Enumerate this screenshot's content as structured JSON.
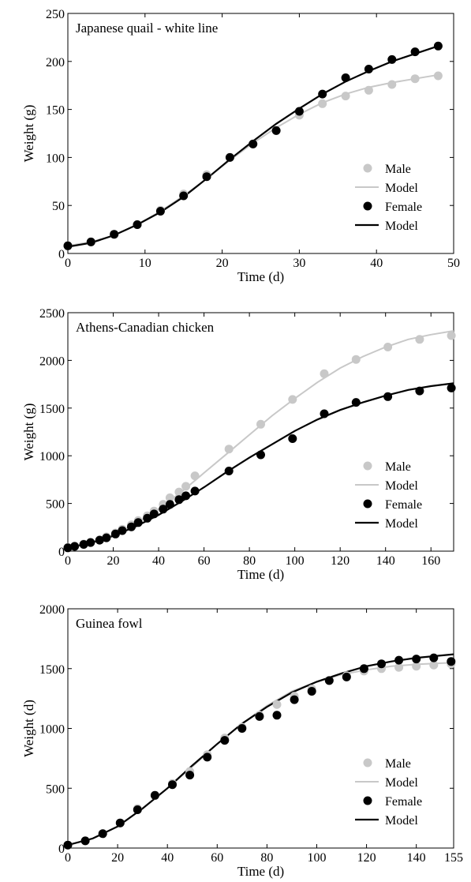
{
  "colors": {
    "male": "#c8c8c8",
    "female": "#000000",
    "model_male": "#c8c8c8",
    "model_female": "#000000"
  },
  "chart_data": [
    {
      "type": "line",
      "title": "Japanese quail - white line",
      "xlabel": "Time (d)",
      "ylabel": "Weight (g)",
      "xlim": [
        0,
        50
      ],
      "ylim": [
        0,
        250
      ],
      "xticks": [
        0,
        10,
        20,
        30,
        40,
        50
      ],
      "yticks": [
        0,
        50,
        100,
        150,
        200,
        250
      ],
      "legend": {
        "placement": "bottom-right",
        "labels": [
          "Male",
          "Model",
          "Female",
          "Model"
        ]
      },
      "series": [
        {
          "name": "Male",
          "kind": "points",
          "x": [
            0,
            3,
            6,
            9,
            12,
            15,
            18,
            21,
            24,
            27,
            30,
            33,
            36,
            39,
            42,
            45,
            48
          ],
          "y": [
            8,
            12,
            20,
            30,
            45,
            62,
            82,
            100,
            114,
            128,
            144,
            156,
            164,
            170,
            176,
            182,
            185
          ]
        },
        {
          "name": "Model",
          "kind": "line",
          "x": [
            0,
            3,
            6,
            9,
            12,
            15,
            18,
            21,
            24,
            27,
            30,
            33,
            36,
            39,
            42,
            45,
            48
          ],
          "y": [
            8,
            12,
            19,
            30,
            44,
            60,
            78,
            97,
            115,
            131,
            145,
            157,
            166,
            173,
            178,
            182,
            186
          ]
        },
        {
          "name": "Female",
          "kind": "points",
          "x": [
            0,
            3,
            6,
            9,
            12,
            15,
            18,
            21,
            24,
            27,
            30,
            33,
            36,
            39,
            42,
            45,
            48
          ],
          "y": [
            8,
            12,
            20,
            30,
            44,
            60,
            80,
            100,
            114,
            128,
            148,
            166,
            183,
            192,
            202,
            210,
            216
          ]
        },
        {
          "name": "Model",
          "kind": "line",
          "x": [
            0,
            3,
            6,
            9,
            12,
            15,
            18,
            21,
            24,
            27,
            30,
            33,
            36,
            39,
            42,
            45,
            48
          ],
          "y": [
            7,
            11,
            19,
            30,
            43,
            59,
            78,
            98,
            117,
            135,
            151,
            166,
            179,
            190,
            200,
            208,
            216
          ]
        }
      ]
    },
    {
      "type": "line",
      "title": "Athens-Canadian chicken",
      "xlabel": "Time (d)",
      "ylabel": "Weight (g)",
      "xlim": [
        0,
        170
      ],
      "ylim": [
        0,
        2500
      ],
      "xticks": [
        0,
        20,
        40,
        60,
        80,
        100,
        120,
        140,
        160
      ],
      "yticks": [
        0,
        500,
        1000,
        1500,
        2000,
        2500
      ],
      "legend": {
        "placement": "bottom-right",
        "labels": [
          "Male",
          "Model",
          "Female",
          "Model"
        ]
      },
      "series": [
        {
          "name": "Male",
          "kind": "points",
          "x": [
            0,
            3,
            7,
            10,
            14,
            17,
            21,
            24,
            28,
            31,
            35,
            38,
            42,
            45,
            49,
            52,
            56,
            71,
            85,
            99,
            113,
            127,
            141,
            155,
            169
          ],
          "y": [
            40,
            55,
            75,
            95,
            120,
            150,
            190,
            230,
            275,
            320,
            370,
            420,
            490,
            560,
            620,
            680,
            790,
            1070,
            1330,
            1590,
            1860,
            2010,
            2140,
            2220,
            2260
          ]
        },
        {
          "name": "Model",
          "kind": "line",
          "x": [
            0,
            10,
            20,
            30,
            40,
            50,
            60,
            70,
            80,
            90,
            100,
            110,
            120,
            130,
            140,
            150,
            160,
            170
          ],
          "y": [
            40,
            90,
            170,
            290,
            440,
            620,
            820,
            1020,
            1220,
            1420,
            1600,
            1770,
            1920,
            2040,
            2140,
            2220,
            2270,
            2310
          ]
        },
        {
          "name": "Female",
          "kind": "points",
          "x": [
            0,
            3,
            7,
            10,
            14,
            17,
            21,
            24,
            28,
            31,
            35,
            38,
            42,
            45,
            49,
            52,
            56,
            71,
            85,
            99,
            113,
            127,
            141,
            155,
            169
          ],
          "y": [
            35,
            50,
            70,
            90,
            115,
            140,
            180,
            215,
            255,
            300,
            345,
            390,
            440,
            490,
            540,
            580,
            630,
            840,
            1010,
            1180,
            1440,
            1560,
            1620,
            1680,
            1710
          ]
        },
        {
          "name": "Model",
          "kind": "line",
          "x": [
            0,
            10,
            20,
            30,
            40,
            50,
            60,
            70,
            80,
            90,
            100,
            110,
            120,
            130,
            140,
            150,
            160,
            170
          ],
          "y": [
            35,
            85,
            160,
            260,
            380,
            520,
            670,
            830,
            980,
            1120,
            1260,
            1380,
            1480,
            1560,
            1630,
            1690,
            1730,
            1760
          ]
        }
      ]
    },
    {
      "type": "line",
      "title": "Guinea fowl",
      "xlabel": "Time (d)",
      "ylabel": "Weight (d)",
      "xlim": [
        0,
        155
      ],
      "ylim": [
        0,
        2000
      ],
      "xticks": [
        0,
        20,
        40,
        60,
        80,
        100,
        120,
        140,
        155
      ],
      "yticks": [
        0,
        500,
        1000,
        1500,
        2000
      ],
      "legend": {
        "placement": "bottom-right",
        "labels": [
          "Male",
          "Model",
          "Female",
          "Model"
        ]
      },
      "series": [
        {
          "name": "Male",
          "kind": "points",
          "x": [
            0,
            7,
            14,
            21,
            28,
            35,
            42,
            49,
            56,
            63,
            70,
            77,
            84,
            91,
            98,
            105,
            112,
            119,
            126,
            133,
            140,
            147,
            154
          ],
          "y": [
            25,
            60,
            120,
            210,
            330,
            440,
            540,
            640,
            780,
            920,
            1010,
            1110,
            1200,
            1270,
            1330,
            1400,
            1440,
            1480,
            1500,
            1510,
            1520,
            1530,
            1540
          ]
        },
        {
          "name": "Model",
          "kind": "line",
          "x": [
            0,
            10,
            20,
            30,
            40,
            50,
            60,
            70,
            80,
            90,
            100,
            110,
            120,
            130,
            140,
            150,
            155
          ],
          "y": [
            25,
            80,
            180,
            330,
            500,
            680,
            870,
            1040,
            1190,
            1310,
            1390,
            1450,
            1490,
            1520,
            1535,
            1545,
            1550
          ]
        },
        {
          "name": "Female",
          "kind": "points",
          "x": [
            0,
            7,
            14,
            21,
            28,
            35,
            42,
            49,
            56,
            63,
            70,
            77,
            84,
            91,
            98,
            105,
            112,
            119,
            126,
            133,
            140,
            147,
            154
          ],
          "y": [
            25,
            60,
            120,
            210,
            320,
            440,
            530,
            610,
            760,
            900,
            1000,
            1100,
            1110,
            1240,
            1310,
            1400,
            1430,
            1500,
            1540,
            1570,
            1580,
            1590,
            1560
          ]
        },
        {
          "name": "Model",
          "kind": "line",
          "x": [
            0,
            10,
            20,
            30,
            40,
            50,
            60,
            70,
            80,
            90,
            100,
            110,
            120,
            130,
            140,
            150,
            155
          ],
          "y": [
            25,
            80,
            180,
            330,
            500,
            690,
            870,
            1040,
            1180,
            1300,
            1390,
            1460,
            1520,
            1560,
            1590,
            1610,
            1620
          ]
        }
      ]
    }
  ]
}
